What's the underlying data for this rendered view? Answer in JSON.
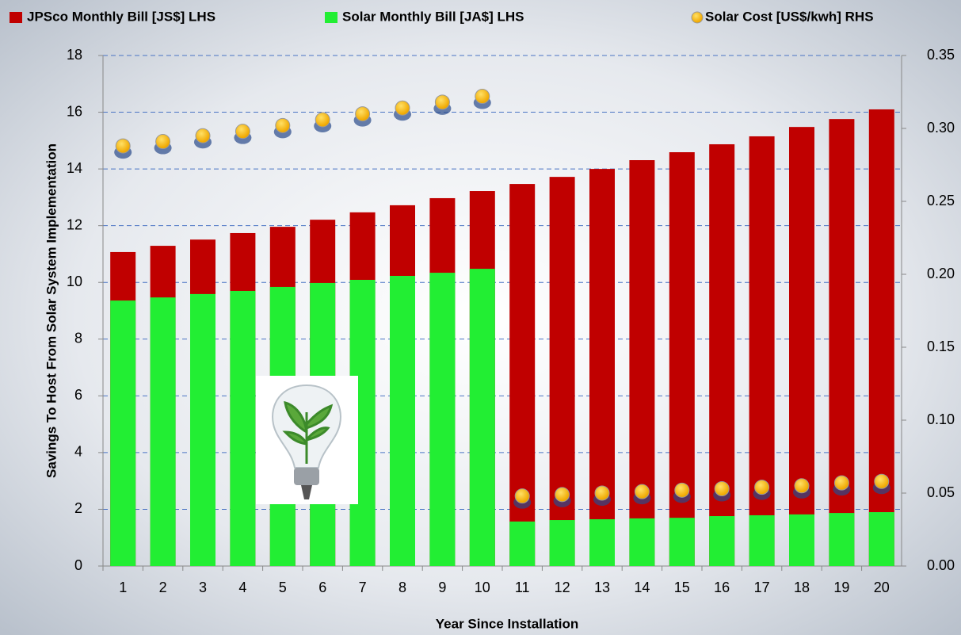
{
  "chart_data": {
    "type": "bar",
    "x_label": "Year Since Installation",
    "y_label": "Savings To Host From Solar System Implementation",
    "categories": [
      "1",
      "2",
      "3",
      "4",
      "5",
      "6",
      "7",
      "8",
      "9",
      "10",
      "11",
      "12",
      "13",
      "14",
      "15",
      "16",
      "17",
      "18",
      "19",
      "20"
    ],
    "series": [
      {
        "name": "JPSco Monthly Bill [JS$] LHS",
        "color": "#c00000",
        "type": "bar",
        "values": [
          11.07,
          11.29,
          11.51,
          11.74,
          11.96,
          12.21,
          12.47,
          12.72,
          12.97,
          13.22,
          13.47,
          13.72,
          14.0,
          14.31,
          14.59,
          14.87,
          15.15,
          15.48,
          15.76,
          16.1
        ]
      },
      {
        "name": "Solar Monthly Bill [JA$] LHS",
        "color": "#22ee33",
        "type": "bar",
        "values": [
          9.36,
          9.47,
          9.59,
          9.7,
          9.84,
          9.98,
          10.09,
          10.23,
          10.34,
          10.48,
          1.57,
          1.62,
          1.65,
          1.68,
          1.7,
          1.76,
          1.79,
          1.82,
          1.87,
          1.9
        ]
      },
      {
        "name": "Solar Cost [US$/kwh]  RHS",
        "color": "#ffc000",
        "type": "scatter",
        "axis": "y2",
        "values": [
          0.288,
          0.291,
          0.295,
          0.298,
          0.302,
          0.306,
          0.31,
          0.314,
          0.318,
          0.322,
          0.048,
          0.049,
          0.05,
          0.051,
          0.052,
          0.053,
          0.054,
          0.055,
          0.057,
          0.058
        ]
      }
    ],
    "ylim": [
      0,
      18
    ],
    "yticks": [
      0,
      2,
      4,
      6,
      8,
      10,
      12,
      14,
      16,
      18
    ],
    "y2lim": [
      0,
      0.35
    ],
    "y2ticks": [
      {
        "value": 0,
        "label": "0.00"
      },
      0.05,
      {
        "value": 0.1,
        "label": "0.10"
      },
      0.15,
      {
        "value": 0.2,
        "label": "0.20"
      },
      0.25,
      {
        "value": 0.3,
        "label": "0.30"
      },
      0.35
    ],
    "grid": true,
    "legend": "top"
  }
}
